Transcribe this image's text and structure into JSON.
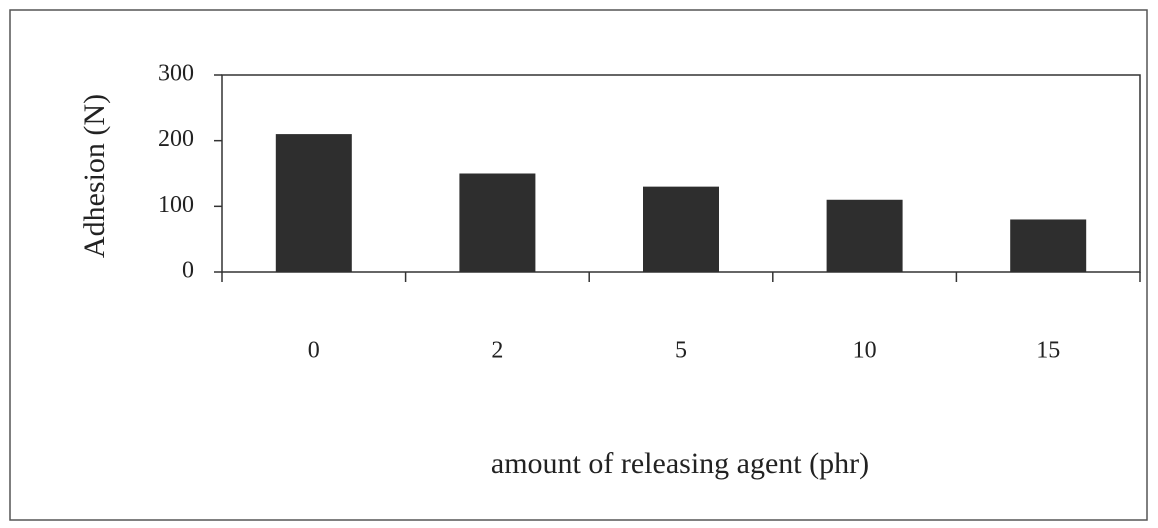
{
  "chart_data": {
    "type": "bar",
    "x_label": "amount of releasing agent (phr)",
    "y_label": "Adhesion (N)",
    "categories": [
      "0",
      "2",
      "5",
      "10",
      "15"
    ],
    "values": [
      210,
      150,
      130,
      110,
      80
    ],
    "color": "#2e2e2e",
    "ylim": [
      0,
      300
    ],
    "yticks": [
      0,
      100,
      200,
      300
    ],
    "grid": false
  }
}
